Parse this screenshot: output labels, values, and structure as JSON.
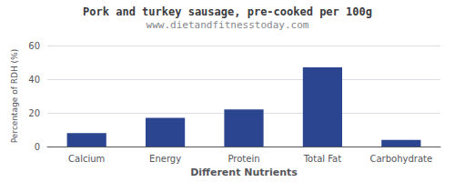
{
  "chart_data": {
    "type": "bar",
    "title": "Pork and turkey sausage, pre-cooked per 100g",
    "subtitle": "www.dietandfitnesstoday.com",
    "xlabel": "Different Nutrients",
    "ylabel": "Percentage of RDH (%)",
    "categories": [
      "Calcium",
      "Energy",
      "Protein",
      "Total Fat",
      "Carbohydrate"
    ],
    "values": [
      8,
      17,
      22,
      47,
      4
    ],
    "color": "#2b4590",
    "ylim": [
      0,
      60
    ],
    "yticks": [
      0,
      20,
      40,
      60
    ],
    "grid": true
  }
}
